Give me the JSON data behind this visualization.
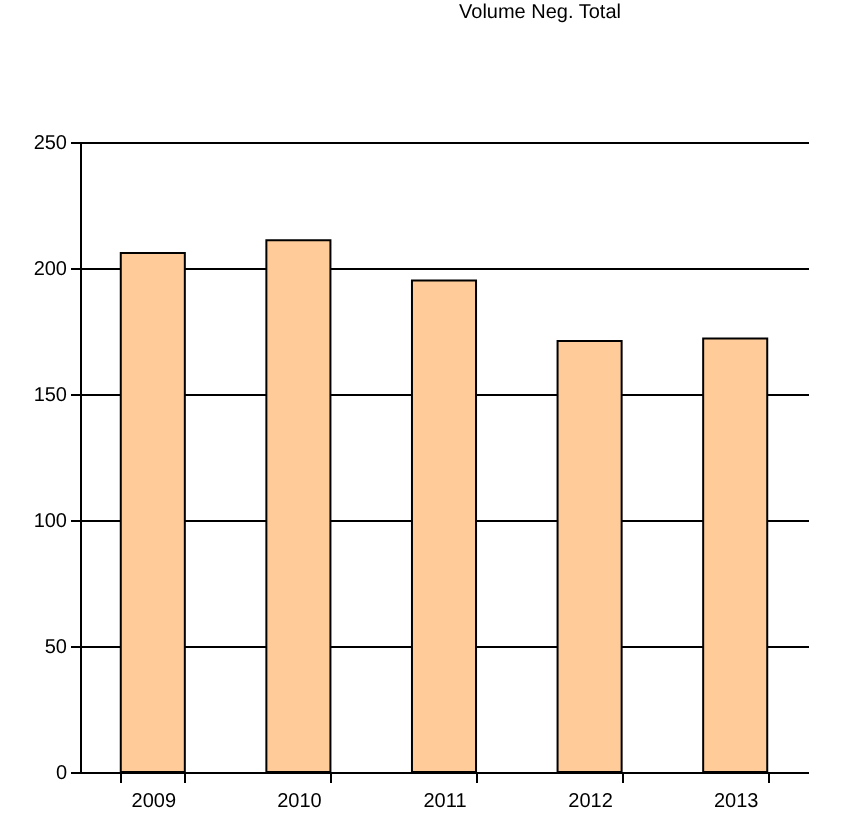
{
  "chart_data": {
    "type": "bar",
    "title": "Volume Neg. Total",
    "categories": [
      "2009",
      "2010",
      "2011",
      "2012",
      "2013"
    ],
    "values": [
      206,
      211,
      195,
      171,
      172
    ],
    "color": "#ffcc99",
    "ylim": [
      0,
      250
    ],
    "yticks": [
      0,
      50,
      100,
      150,
      200,
      250
    ],
    "grid": "y"
  }
}
